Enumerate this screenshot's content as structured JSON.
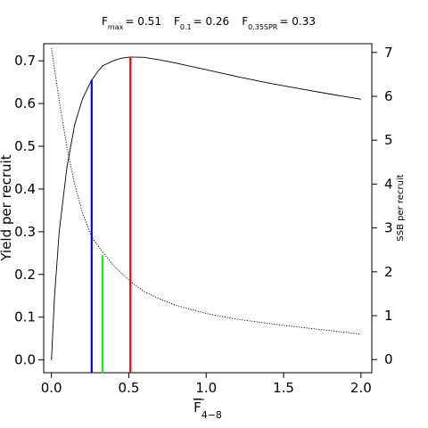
{
  "chart_data": {
    "type": "line",
    "title_parts": [
      {
        "main": "F",
        "sub": "max",
        "value": "= 0.51"
      },
      {
        "main": "F",
        "sub": "0.1",
        "value": "= 0.26"
      },
      {
        "main": "F",
        "sub": "0.35SPR",
        "value": "= 0.33"
      }
    ],
    "xlabel": {
      "main": "F",
      "sub": "4−8"
    },
    "ylabel": "Yield per recruit",
    "y2label": "SSB per recruit",
    "xlim": [
      -0.05,
      2.07
    ],
    "ylim": [
      -0.03,
      0.74
    ],
    "y2lim": [
      -0.3,
      7.2
    ],
    "xticks": [
      0.0,
      0.5,
      1.0,
      1.5,
      2.0
    ],
    "xtick_labels": [
      "0.0",
      "0.5",
      "1.0",
      "1.5",
      "2.0"
    ],
    "yticks": [
      0.0,
      0.1,
      0.2,
      0.3,
      0.4,
      0.5,
      0.6,
      0.7
    ],
    "ytick_labels": [
      "0.0",
      "0.1",
      "0.2",
      "0.3",
      "0.4",
      "0.5",
      "0.6",
      "0.7"
    ],
    "y2ticks": [
      0,
      1,
      2,
      3,
      4,
      5,
      6,
      7
    ],
    "y2tick_labels": [
      "0",
      "1",
      "2",
      "3",
      "4",
      "5",
      "6",
      "7"
    ],
    "grid": false,
    "series": [
      {
        "axis": "left",
        "style": "solid",
        "color": "#000000",
        "x": [
          0.0,
          0.02,
          0.05,
          0.1,
          0.15,
          0.2,
          0.26,
          0.3,
          0.33,
          0.4,
          0.45,
          0.51,
          0.6,
          0.7,
          0.8,
          0.9,
          1.0,
          1.2,
          1.4,
          1.6,
          1.8,
          2.0
        ],
        "y": [
          0.0,
          0.15,
          0.3,
          0.45,
          0.55,
          0.61,
          0.655,
          0.675,
          0.688,
          0.7,
          0.706,
          0.709,
          0.708,
          0.702,
          0.695,
          0.687,
          0.679,
          0.663,
          0.648,
          0.635,
          0.622,
          0.61
        ]
      },
      {
        "axis": "right",
        "style": "dotted",
        "color": "#000000",
        "x": [
          0.0,
          0.05,
          0.1,
          0.15,
          0.2,
          0.26,
          0.3,
          0.33,
          0.4,
          0.51,
          0.6,
          0.7,
          0.8,
          1.0,
          1.2,
          1.5,
          1.8,
          2.0
        ],
        "y": [
          7.1,
          5.9,
          4.85,
          4.0,
          3.35,
          2.8,
          2.6,
          2.45,
          2.15,
          1.78,
          1.55,
          1.38,
          1.24,
          1.05,
          0.92,
          0.78,
          0.66,
          0.58
        ]
      }
    ],
    "reference_lines": [
      {
        "name": "Fmax",
        "x": 0.51,
        "y_top": 0.709,
        "color": "#ff0000"
      },
      {
        "name": "F0.1",
        "x": 0.26,
        "y_top": 0.655,
        "color": "#0000ff"
      },
      {
        "name": "F0.35SPR",
        "x": 0.33,
        "y_top": 0.245,
        "color": "#00ff00"
      }
    ]
  }
}
